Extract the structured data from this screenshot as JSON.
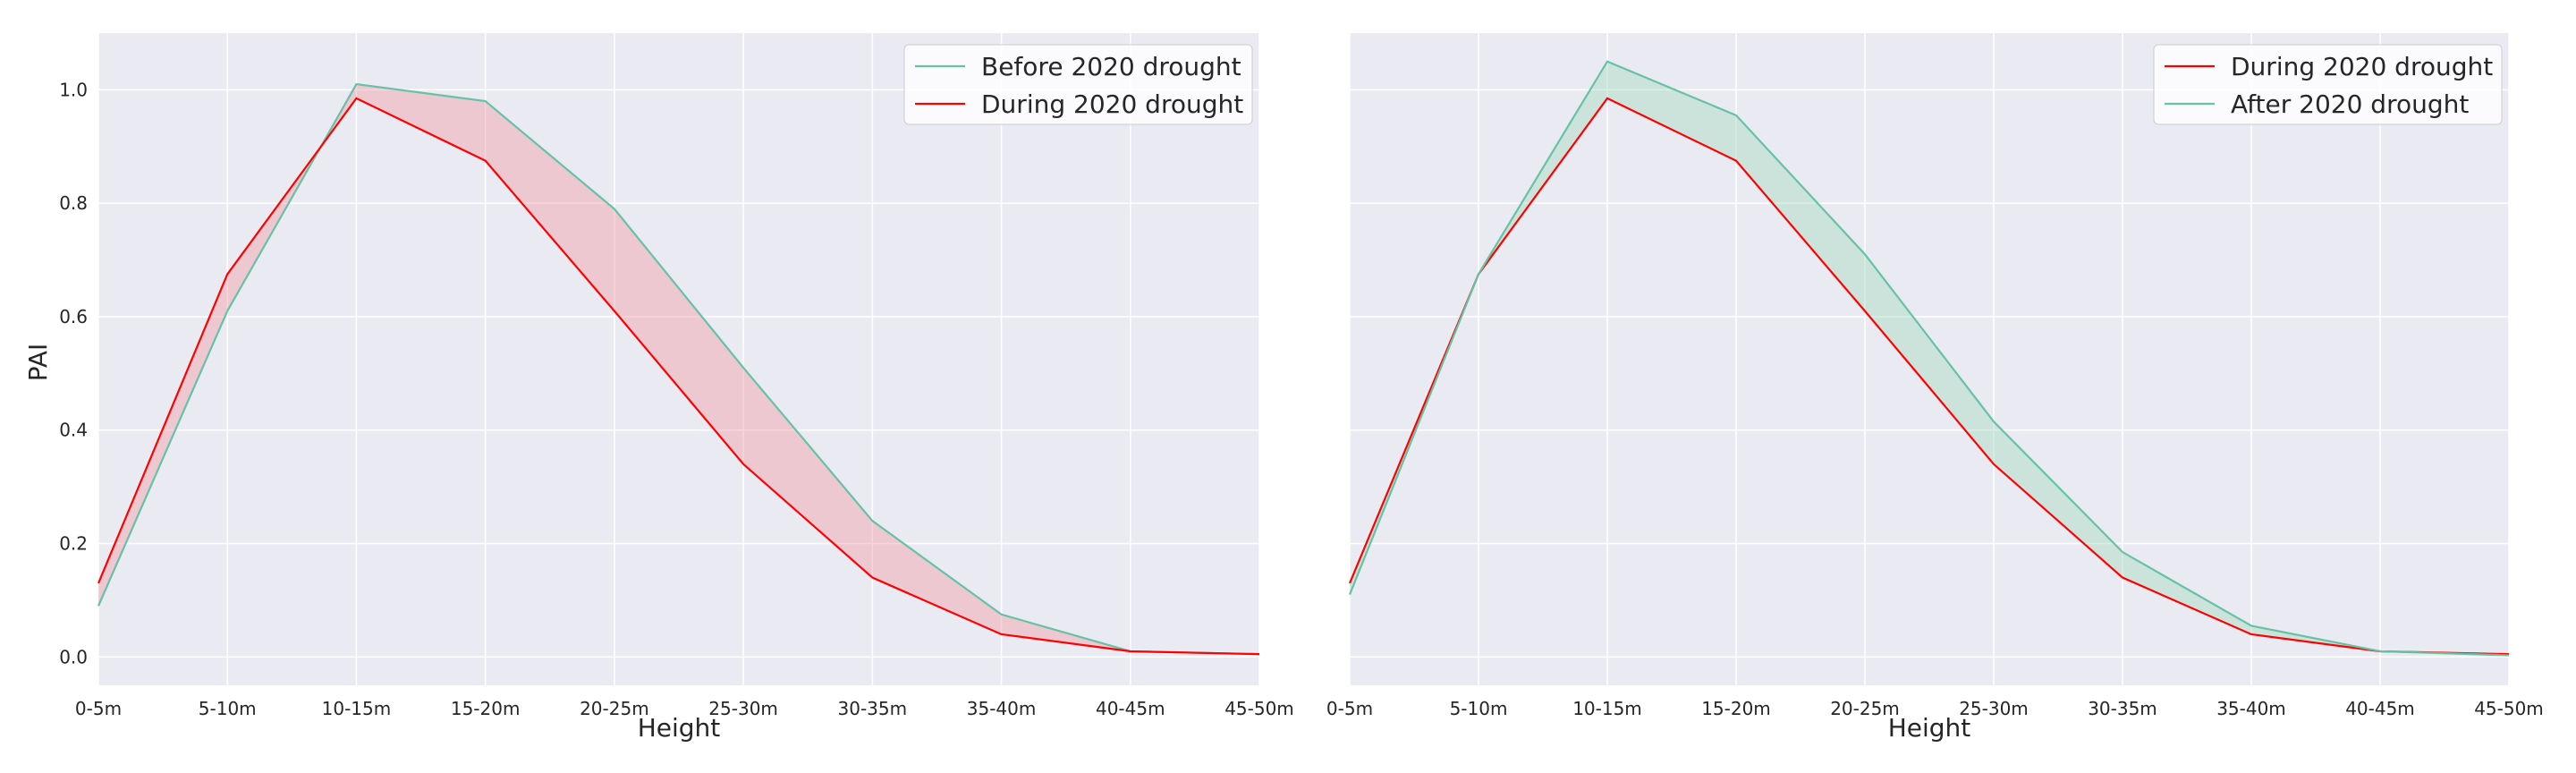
{
  "chart_data": [
    {
      "type": "line",
      "categories": [
        "0-5m",
        "5-10m",
        "10-15m",
        "15-20m",
        "20-25m",
        "25-30m",
        "30-35m",
        "35-40m",
        "40-45m",
        "45-50m"
      ],
      "series": [
        {
          "name": "Before 2020 drought",
          "color": "#66c2a5",
          "values": [
            0.09,
            0.61,
            1.01,
            0.98,
            0.79,
            0.51,
            0.24,
            0.075,
            0.01,
            0.005
          ]
        },
        {
          "name": "During 2020 drought",
          "color": "#ff0000",
          "values": [
            0.13,
            0.675,
            0.985,
            0.875,
            0.61,
            0.34,
            0.14,
            0.04,
            0.01,
            0.005
          ]
        }
      ],
      "fill_color": "#f4a0a8",
      "ylabel": "PAI",
      "xlabel": "Height",
      "ylim": [
        -0.05,
        1.1
      ],
      "yticks": [
        "0.0",
        "0.2",
        "0.4",
        "0.6",
        "0.8",
        "1.0"
      ],
      "legend": "top-right",
      "grid": true
    },
    {
      "type": "line",
      "categories": [
        "0-5m",
        "5-10m",
        "10-15m",
        "15-20m",
        "20-25m",
        "25-30m",
        "30-35m",
        "35-40m",
        "40-45m",
        "45-50m"
      ],
      "series": [
        {
          "name": "During 2020 drought",
          "color": "#ff0000",
          "values": [
            0.13,
            0.675,
            0.985,
            0.875,
            0.61,
            0.34,
            0.14,
            0.04,
            0.01,
            0.005
          ]
        },
        {
          "name": "After 2020 drought",
          "color": "#66c2a5",
          "values": [
            0.11,
            0.675,
            1.05,
            0.955,
            0.71,
            0.415,
            0.185,
            0.055,
            0.01,
            0.003
          ]
        }
      ],
      "fill_color": "#a8dcc0",
      "ylabel": "",
      "xlabel": "Height",
      "ylim": [
        -0.05,
        1.1
      ],
      "legend": "top-right",
      "grid": true
    }
  ]
}
